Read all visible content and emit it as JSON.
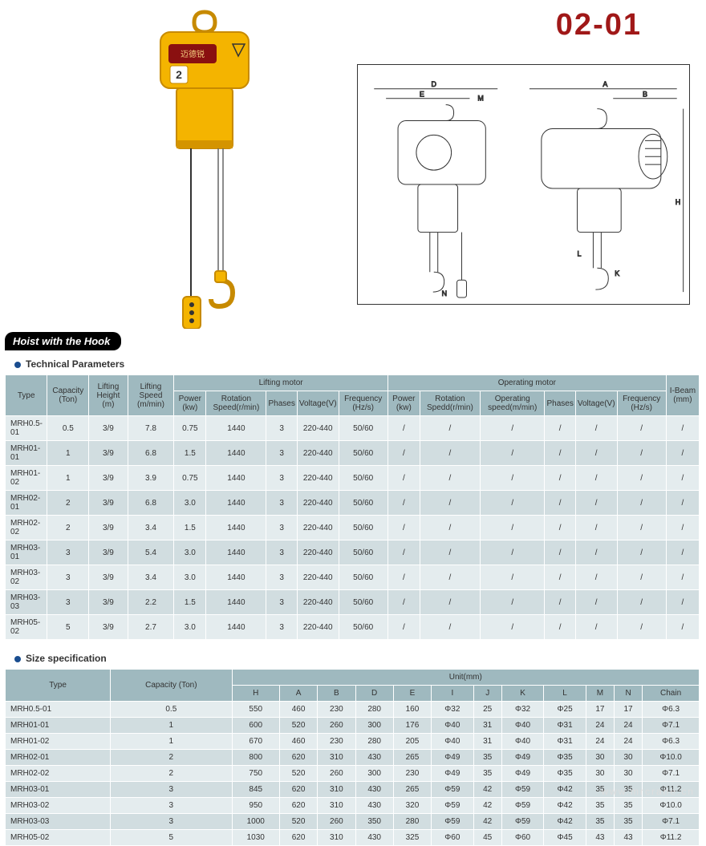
{
  "product_code": "02-01",
  "product_code_color": "#a01818",
  "section_label": "Hoist with the Hook",
  "tech_title": "Technical Parameters",
  "size_title": "Size specification",
  "bullet_color": "#1a4d8f",
  "header_bg": "#9fb9bf",
  "row_even_bg": "#e4ecee",
  "row_odd_bg": "#d1dde0",
  "watermark": "www.mrcrane.cn",
  "table1": {
    "group_headers": [
      "Type",
      "Capacity (Ton)",
      "Lifting Height (m)",
      "Lifting Speed (m/min)",
      "Lifting motor",
      "Operating motor",
      "I-Beam (mm)"
    ],
    "lifting_sub": [
      "Power (kw)",
      "Rotation Speed(r/min)",
      "Phases",
      "Voltage(V)",
      "Frequency (Hz/s)"
    ],
    "operating_sub": [
      "Power (kw)",
      "Rotation Spedd(r/min)",
      "Operating speed(m/min)",
      "Phases",
      "Voltage(V)",
      "Frequency (Hz/s)"
    ],
    "rows": [
      [
        "MRH0.5-01",
        "0.5",
        "3/9",
        "7.8",
        "0.75",
        "1440",
        "3",
        "220-440",
        "50/60",
        "/",
        "/",
        "/",
        "/",
        "/",
        "/",
        "/"
      ],
      [
        "MRH01-01",
        "1",
        "3/9",
        "6.8",
        "1.5",
        "1440",
        "3",
        "220-440",
        "50/60",
        "/",
        "/",
        "/",
        "/",
        "/",
        "/",
        "/"
      ],
      [
        "MRH01-02",
        "1",
        "3/9",
        "3.9",
        "0.75",
        "1440",
        "3",
        "220-440",
        "50/60",
        "/",
        "/",
        "/",
        "/",
        "/",
        "/",
        "/"
      ],
      [
        "MRH02-01",
        "2",
        "3/9",
        "6.8",
        "3.0",
        "1440",
        "3",
        "220-440",
        "50/60",
        "/",
        "/",
        "/",
        "/",
        "/",
        "/",
        "/"
      ],
      [
        "MRH02-02",
        "2",
        "3/9",
        "3.4",
        "1.5",
        "1440",
        "3",
        "220-440",
        "50/60",
        "/",
        "/",
        "/",
        "/",
        "/",
        "/",
        "/"
      ],
      [
        "MRH03-01",
        "3",
        "3/9",
        "5.4",
        "3.0",
        "1440",
        "3",
        "220-440",
        "50/60",
        "/",
        "/",
        "/",
        "/",
        "/",
        "/",
        "/"
      ],
      [
        "MRH03-02",
        "3",
        "3/9",
        "3.4",
        "3.0",
        "1440",
        "3",
        "220-440",
        "50/60",
        "/",
        "/",
        "/",
        "/",
        "/",
        "/",
        "/"
      ],
      [
        "MRH03-03",
        "3",
        "3/9",
        "2.2",
        "1.5",
        "1440",
        "3",
        "220-440",
        "50/60",
        "/",
        "/",
        "/",
        "/",
        "/",
        "/",
        "/"
      ],
      [
        "MRH05-02",
        "5",
        "3/9",
        "2.7",
        "3.0",
        "1440",
        "3",
        "220-440",
        "50/60",
        "/",
        "/",
        "/",
        "/",
        "/",
        "/",
        "/"
      ]
    ]
  },
  "table2": {
    "group_headers": [
      "Type",
      "Capacity (Ton)",
      "Unit(mm)"
    ],
    "unit_sub": [
      "H",
      "A",
      "B",
      "D",
      "E",
      "I",
      "J",
      "K",
      "L",
      "M",
      "N",
      "Chain"
    ],
    "rows": [
      [
        "MRH0.5-01",
        "0.5",
        "550",
        "460",
        "230",
        "280",
        "160",
        "Φ32",
        "25",
        "Φ32",
        "Φ25",
        "17",
        "17",
        "Φ6.3"
      ],
      [
        "MRH01-01",
        "1",
        "600",
        "520",
        "260",
        "300",
        "176",
        "Φ40",
        "31",
        "Φ40",
        "Φ31",
        "24",
        "24",
        "Φ7.1"
      ],
      [
        "MRH01-02",
        "1",
        "670",
        "460",
        "230",
        "280",
        "205",
        "Φ40",
        "31",
        "Φ40",
        "Φ31",
        "24",
        "24",
        "Φ6.3"
      ],
      [
        "MRH02-01",
        "2",
        "800",
        "620",
        "310",
        "430",
        "265",
        "Φ49",
        "35",
        "Φ49",
        "Φ35",
        "30",
        "30",
        "Φ10.0"
      ],
      [
        "MRH02-02",
        "2",
        "750",
        "520",
        "260",
        "300",
        "230",
        "Φ49",
        "35",
        "Φ49",
        "Φ35",
        "30",
        "30",
        "Φ7.1"
      ],
      [
        "MRH03-01",
        "3",
        "845",
        "620",
        "310",
        "430",
        "265",
        "Φ59",
        "42",
        "Φ59",
        "Φ42",
        "35",
        "35",
        "Φ11.2"
      ],
      [
        "MRH03-02",
        "3",
        "950",
        "620",
        "310",
        "430",
        "320",
        "Φ59",
        "42",
        "Φ59",
        "Φ42",
        "35",
        "35",
        "Φ10.0"
      ],
      [
        "MRH03-03",
        "3",
        "1000",
        "520",
        "260",
        "350",
        "280",
        "Φ59",
        "42",
        "Φ59",
        "Φ42",
        "35",
        "35",
        "Φ7.1"
      ],
      [
        "MRH05-02",
        "5",
        "1030",
        "620",
        "310",
        "430",
        "325",
        "Φ60",
        "45",
        "Φ60",
        "Φ45",
        "43",
        "43",
        "Φ11.2"
      ]
    ]
  }
}
